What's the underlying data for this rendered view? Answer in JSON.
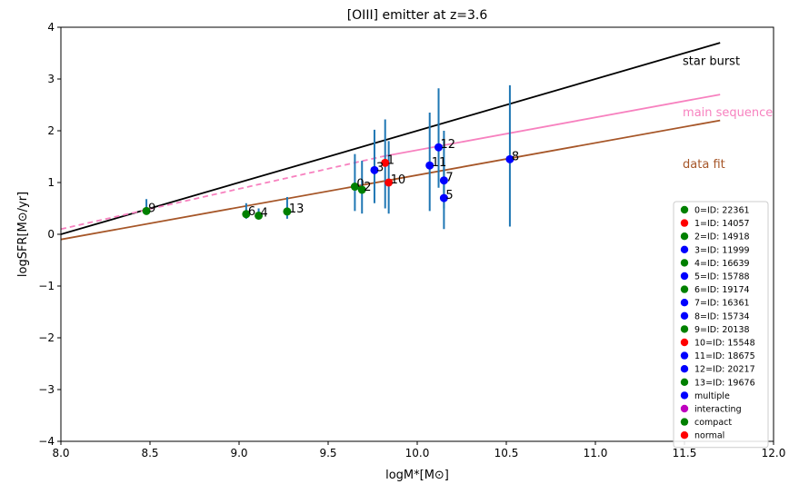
{
  "chart_data": {
    "type": "scatter",
    "title": "[OIII] emitter at z=3.6",
    "xlabel": "logM*[M⊙]",
    "ylabel": "logSFR[M⊙/yr]",
    "xlim": [
      8.0,
      12.0
    ],
    "ylim": [
      -4,
      4
    ],
    "x_ticks": [
      "8.0",
      "8.5",
      "9.0",
      "9.5",
      "10.0",
      "10.5",
      "11.0",
      "11.5",
      "12.0"
    ],
    "y_ticks": [
      "−4",
      "−3",
      "−2",
      "−1",
      "0",
      "1",
      "2",
      "3",
      "4"
    ],
    "grid": false,
    "legend_position": "lower-right",
    "lines": [
      {
        "label": "star burst",
        "color": "#000000",
        "style": "solid",
        "x": [
          8.0,
          11.7
        ],
        "y": [
          0.0,
          3.7
        ]
      },
      {
        "label": "main sequence",
        "color": "#f781bf",
        "style": "solid",
        "x": [
          9.8,
          11.7
        ],
        "y": [
          1.5,
          2.7
        ]
      },
      {
        "label": "",
        "color": "#f781bf",
        "style": "dashed",
        "x": [
          8.0,
          9.8
        ],
        "y": [
          0.1,
          1.5
        ]
      },
      {
        "label": "data fit",
        "color": "#a65628",
        "style": "solid",
        "x": [
          8.0,
          11.7
        ],
        "y": [
          -0.1,
          2.2
        ]
      }
    ],
    "points": [
      {
        "id": "0",
        "legend": "0=ID: 22361",
        "x": 9.65,
        "y": 0.92,
        "yerr": [
          0.45,
          1.55
        ],
        "color": "#008000"
      },
      {
        "id": "1",
        "legend": "1=ID: 14057",
        "x": 9.82,
        "y": 1.38,
        "yerr": [
          0.5,
          2.22
        ],
        "color": "#ff0000"
      },
      {
        "id": "2",
        "legend": "2=ID: 14918",
        "x": 9.69,
        "y": 0.86,
        "yerr": [
          0.4,
          1.42
        ],
        "color": "#008000"
      },
      {
        "id": "3",
        "legend": "3=ID: 11999",
        "x": 9.76,
        "y": 1.24,
        "yerr": [
          0.6,
          2.02
        ],
        "color": "#0000ff"
      },
      {
        "id": "4",
        "legend": "4=ID: 16639",
        "x": 9.11,
        "y": 0.36,
        "yerr": [
          0.3,
          0.5
        ],
        "color": "#008000"
      },
      {
        "id": "5",
        "legend": "5=ID: 15788",
        "x": 10.15,
        "y": 0.7,
        "yerr": [
          0.1,
          1.4
        ],
        "color": "#0000ff"
      },
      {
        "id": "6",
        "legend": "6=ID: 19174",
        "x": 9.04,
        "y": 0.39,
        "yerr": [
          0.3,
          0.6
        ],
        "color": "#008000"
      },
      {
        "id": "7",
        "legend": "7=ID: 16361",
        "x": 10.15,
        "y": 1.04,
        "yerr": [
          0.5,
          2.0
        ],
        "color": "#0000ff"
      },
      {
        "id": "8",
        "legend": "8=ID: 15734",
        "x": 10.52,
        "y": 1.45,
        "yerr": [
          0.15,
          2.88
        ],
        "color": "#0000ff"
      },
      {
        "id": "9",
        "legend": "9=ID: 20138",
        "x": 8.48,
        "y": 0.45,
        "yerr": [
          0.4,
          0.68
        ],
        "color": "#008000"
      },
      {
        "id": "10",
        "legend": "10=ID: 15548",
        "x": 9.84,
        "y": 1.0,
        "yerr": [
          0.4,
          1.8
        ],
        "color": "#ff0000"
      },
      {
        "id": "11",
        "legend": "11=ID: 18675",
        "x": 10.07,
        "y": 1.33,
        "yerr": [
          0.45,
          2.35
        ],
        "color": "#0000ff"
      },
      {
        "id": "12",
        "legend": "12=ID: 20217",
        "x": 10.12,
        "y": 1.68,
        "yerr": [
          0.9,
          2.82
        ],
        "color": "#0000ff"
      },
      {
        "id": "13",
        "legend": "13=ID: 19676",
        "x": 9.27,
        "y": 0.44,
        "yerr": [
          0.3,
          0.72
        ],
        "color": "#008000"
      }
    ],
    "errorbar_color": "#1f77b4",
    "legend_extra": [
      {
        "label": "multiple",
        "color": "#0000ff"
      },
      {
        "label": "interacting",
        "color": "#bf00bf"
      },
      {
        "label": "compact",
        "color": "#008000"
      },
      {
        "label": "normal",
        "color": "#ff0000"
      }
    ]
  }
}
